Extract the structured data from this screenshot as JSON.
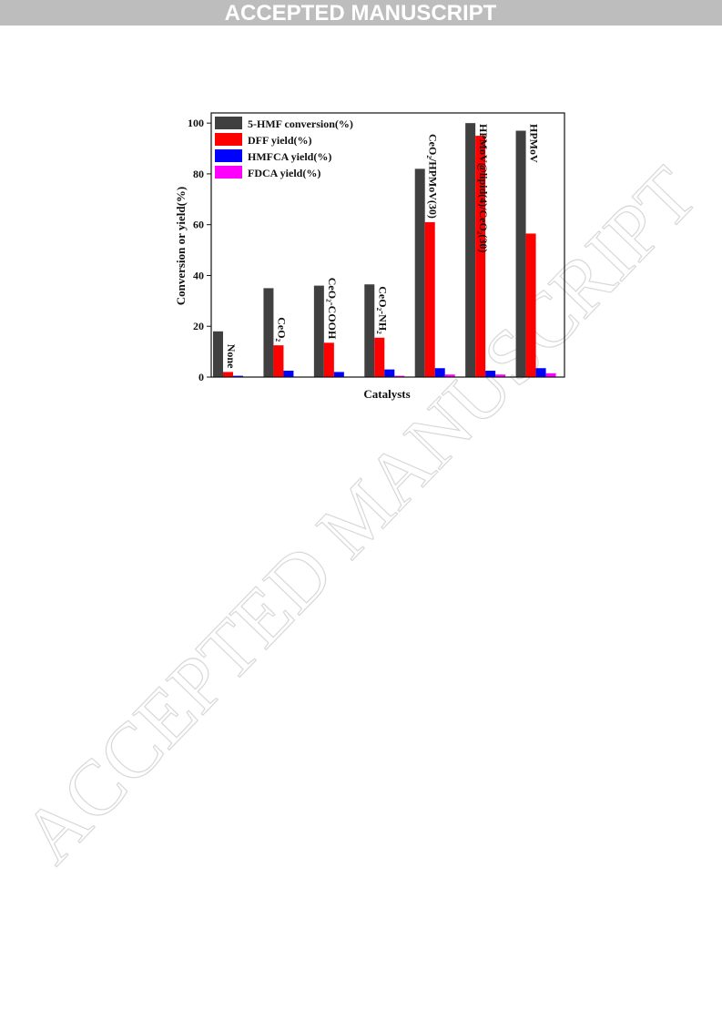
{
  "header": "ACCEPTED MANUSCRIPT",
  "watermark": "ACCEPTED MANUSCRIPT",
  "chart_data": {
    "type": "bar",
    "xlabel": "Catalysts",
    "ylabel": "Conversion or yield(%)",
    "categories": [
      "None",
      "CeO₂",
      "CeO₂-COOH",
      "CeO₂-NH₂",
      "CeO₂/HPMoV(30)",
      "HPMoV@lipid(4)/CeO₂(30)",
      "HPMoV"
    ],
    "series": [
      {
        "name": "5-HMF conversion(%)",
        "color": "#404040",
        "values": [
          18,
          35,
          36,
          36.5,
          82,
          100,
          97
        ]
      },
      {
        "name": "DFF yield(%)",
        "color": "#ff0000",
        "values": [
          2,
          12.5,
          13.5,
          15.5,
          61,
          95,
          56.5
        ]
      },
      {
        "name": "HMFCA yield(%)",
        "color": "#0000ff",
        "values": [
          0.5,
          2.5,
          2,
          3,
          3.5,
          2.5,
          3.5
        ]
      },
      {
        "name": "FDCA yield(%)",
        "color": "#ff00ff",
        "values": [
          0,
          0,
          0,
          0.5,
          1,
          1,
          1.5
        ]
      }
    ],
    "ylim": [
      0,
      104
    ],
    "yticks": [
      0,
      20,
      40,
      60,
      80,
      100
    ],
    "legend": "top-left"
  }
}
